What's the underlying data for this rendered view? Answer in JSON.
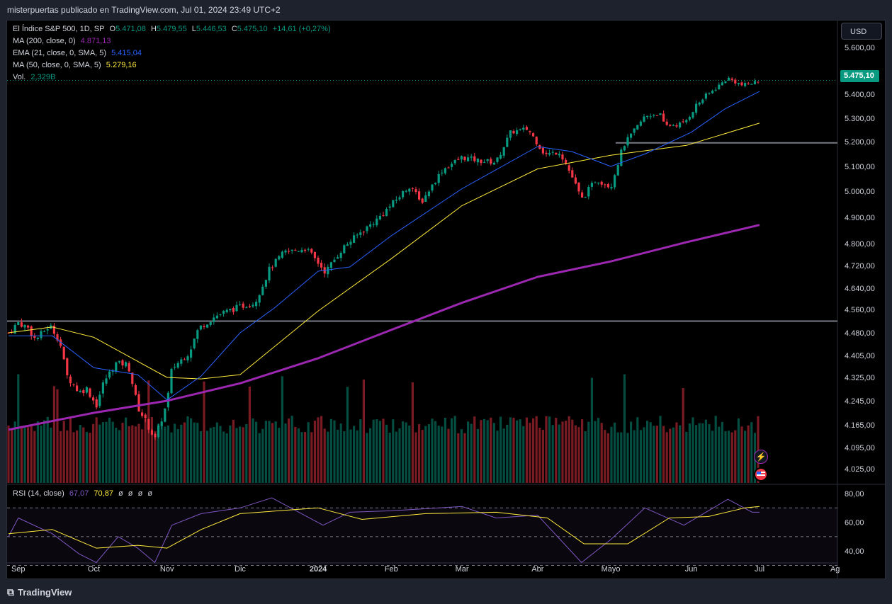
{
  "header": {
    "published_by": "misterpuertas publicado en TradingView.com, Jul 01, 2024 23:49 UTC+2"
  },
  "footer": {
    "brand": "TradingView"
  },
  "currency_button": "USD",
  "last_price_label": "5.475,10",
  "legend": {
    "symbol": "El Índice S&P 500, 1D, SP",
    "ohlc": {
      "o_label": "O",
      "o": "5.471,08",
      "h_label": "H",
      "h": "5.479,55",
      "l_label": "L",
      "l": "5.446,53",
      "c_label": "C",
      "c": "5.475,10",
      "change": "+14,61 (+0,27%)"
    },
    "ma200": {
      "label": "MA (200, close, 0)",
      "value": "4.871,13"
    },
    "ema21": {
      "label": "EMA (21, close, 0, SMA, 5)",
      "value": "5.415,04"
    },
    "ma50": {
      "label": "MA (50, close, 0, SMA, 5)",
      "value": "5.279,16"
    },
    "vol": {
      "label": "Vol.",
      "value": "2,329B"
    }
  },
  "rsi_legend": {
    "label": "RSI (14, close)",
    "rsi": "67,07",
    "ma": "70,87",
    "extras": [
      "ø",
      "ø",
      "ø",
      "ø"
    ]
  },
  "colors": {
    "up": "#089981",
    "down": "#f23645",
    "ma200": "#9c27b0",
    "ema21": "#2962ff",
    "ma50": "#ffeb3b",
    "rsi": "#7e57c2",
    "rsi_ma": "#ffeb3b",
    "bg": "#000000"
  },
  "chart_data": {
    "type": "candlestick",
    "title": "El Índice S&P 500, 1D, SP",
    "price_axis_ticks": [
      "5.600,00",
      "5.500,00",
      "5.400,00",
      "5.300,00",
      "5.200,00",
      "5.100,00",
      "5.000,00",
      "4.900,00",
      "4.800,00",
      "4.720,00",
      "4.640,00",
      "4.560,00",
      "4.480,00",
      "4.405,00",
      "4.325,00",
      "4.245,00",
      "4.165,00",
      "4.095,00",
      "4.025,00"
    ],
    "price_axis_values": [
      5600,
      5500,
      5400,
      5300,
      5200,
      5100,
      5000,
      4900,
      4800,
      4720,
      4640,
      4560,
      4480,
      4405,
      4325,
      4245,
      4165,
      4095,
      4025
    ],
    "rsi_axis_ticks": [
      "80,00",
      "60,00",
      "40,00"
    ],
    "rsi_axis_values": [
      80,
      60,
      40
    ],
    "time_axis_labels": [
      "Sep",
      "Oct",
      "Nov",
      "Dic",
      "2024",
      "Feb",
      "Mar",
      "Abr",
      "Mayo",
      "Jun",
      "Jul",
      "Ag"
    ],
    "close_path": [
      {
        "d": "2023-08-28",
        "c": 4480
      },
      {
        "d": "2023-09-01",
        "c": 4515
      },
      {
        "d": "2023-09-05",
        "c": 4497
      },
      {
        "d": "2023-09-08",
        "c": 4457
      },
      {
        "d": "2023-09-14",
        "c": 4505
      },
      {
        "d": "2023-09-18",
        "c": 4453
      },
      {
        "d": "2023-09-21",
        "c": 4330
      },
      {
        "d": "2023-09-26",
        "c": 4274
      },
      {
        "d": "2023-09-29",
        "c": 4288
      },
      {
        "d": "2023-10-03",
        "c": 4229
      },
      {
        "d": "2023-10-06",
        "c": 4308
      },
      {
        "d": "2023-10-11",
        "c": 4376
      },
      {
        "d": "2023-10-16",
        "c": 4373
      },
      {
        "d": "2023-10-20",
        "c": 4224
      },
      {
        "d": "2023-10-26",
        "c": 4137
      },
      {
        "d": "2023-10-27",
        "c": 4117
      },
      {
        "d": "2023-11-01",
        "c": 4237
      },
      {
        "d": "2023-11-03",
        "c": 4358
      },
      {
        "d": "2023-11-10",
        "c": 4415
      },
      {
        "d": "2023-11-14",
        "c": 4496
      },
      {
        "d": "2023-11-21",
        "c": 4538
      },
      {
        "d": "2023-11-30",
        "c": 4568
      },
      {
        "d": "2023-12-07",
        "c": 4585
      },
      {
        "d": "2023-12-13",
        "c": 4707
      },
      {
        "d": "2023-12-19",
        "c": 4768
      },
      {
        "d": "2023-12-28",
        "c": 4783
      },
      {
        "d": "2024-01-05",
        "c": 4697
      },
      {
        "d": "2024-01-12",
        "c": 4783
      },
      {
        "d": "2024-01-19",
        "c": 4840
      },
      {
        "d": "2024-01-26",
        "c": 4891
      },
      {
        "d": "2024-02-02",
        "c": 4958
      },
      {
        "d": "2024-02-09",
        "c": 5026
      },
      {
        "d": "2024-02-13",
        "c": 4953
      },
      {
        "d": "2024-02-22",
        "c": 5087
      },
      {
        "d": "2024-03-01",
        "c": 5137
      },
      {
        "d": "2024-03-08",
        "c": 5123
      },
      {
        "d": "2024-03-15",
        "c": 5117
      },
      {
        "d": "2024-03-21",
        "c": 5241
      },
      {
        "d": "2024-03-28",
        "c": 5254
      },
      {
        "d": "2024-04-04",
        "c": 5147
      },
      {
        "d": "2024-04-10",
        "c": 5160
      },
      {
        "d": "2024-04-15",
        "c": 5061
      },
      {
        "d": "2024-04-19",
        "c": 4967
      },
      {
        "d": "2024-04-25",
        "c": 5048
      },
      {
        "d": "2024-05-01",
        "c": 5018
      },
      {
        "d": "2024-05-06",
        "c": 5181
      },
      {
        "d": "2024-05-15",
        "c": 5308
      },
      {
        "d": "2024-05-21",
        "c": 5321
      },
      {
        "d": "2024-05-23",
        "c": 5267
      },
      {
        "d": "2024-05-31",
        "c": 5277
      },
      {
        "d": "2024-06-05",
        "c": 5354
      },
      {
        "d": "2024-06-12",
        "c": 5421
      },
      {
        "d": "2024-06-18",
        "c": 5487
      },
      {
        "d": "2024-06-24",
        "c": 5447
      },
      {
        "d": "2024-06-28",
        "c": 5460
      },
      {
        "d": "2024-07-01",
        "c": 5475
      }
    ],
    "ma200_path": [
      {
        "d": "2023-08-28",
        "v": 4150
      },
      {
        "d": "2023-10-02",
        "v": 4205
      },
      {
        "d": "2023-11-01",
        "v": 4245
      },
      {
        "d": "2023-12-01",
        "v": 4305
      },
      {
        "d": "2024-01-02",
        "v": 4395
      },
      {
        "d": "2024-02-01",
        "v": 4490
      },
      {
        "d": "2024-03-01",
        "v": 4585
      },
      {
        "d": "2024-04-01",
        "v": 4680
      },
      {
        "d": "2024-05-01",
        "v": 4735
      },
      {
        "d": "2024-06-01",
        "v": 4805
      },
      {
        "d": "2024-07-01",
        "v": 4871
      }
    ],
    "ema21_path": [
      {
        "d": "2023-08-28",
        "v": 4470
      },
      {
        "d": "2023-09-15",
        "v": 4470
      },
      {
        "d": "2023-10-02",
        "v": 4360
      },
      {
        "d": "2023-10-20",
        "v": 4335
      },
      {
        "d": "2023-11-01",
        "v": 4248
      },
      {
        "d": "2023-11-15",
        "v": 4330
      },
      {
        "d": "2023-12-01",
        "v": 4480
      },
      {
        "d": "2023-12-15",
        "v": 4565
      },
      {
        "d": "2024-01-02",
        "v": 4700
      },
      {
        "d": "2024-01-15",
        "v": 4715
      },
      {
        "d": "2024-02-01",
        "v": 4830
      },
      {
        "d": "2024-03-01",
        "v": 5010
      },
      {
        "d": "2024-04-01",
        "v": 5180
      },
      {
        "d": "2024-04-15",
        "v": 5160
      },
      {
        "d": "2024-05-01",
        "v": 5100
      },
      {
        "d": "2024-05-15",
        "v": 5150
      },
      {
        "d": "2024-06-03",
        "v": 5240
      },
      {
        "d": "2024-06-17",
        "v": 5340
      },
      {
        "d": "2024-07-01",
        "v": 5415
      }
    ],
    "ma50_path": [
      {
        "d": "2023-08-28",
        "v": 4480
      },
      {
        "d": "2023-09-15",
        "v": 4500
      },
      {
        "d": "2023-10-02",
        "v": 4465
      },
      {
        "d": "2023-11-01",
        "v": 4325
      },
      {
        "d": "2023-11-15",
        "v": 4320
      },
      {
        "d": "2023-12-01",
        "v": 4335
      },
      {
        "d": "2024-01-02",
        "v": 4555
      },
      {
        "d": "2024-02-01",
        "v": 4745
      },
      {
        "d": "2024-03-01",
        "v": 4945
      },
      {
        "d": "2024-04-01",
        "v": 5090
      },
      {
        "d": "2024-05-01",
        "v": 5145
      },
      {
        "d": "2024-06-01",
        "v": 5185
      },
      {
        "d": "2024-07-01",
        "v": 5279
      }
    ],
    "horizontal_levels": [
      4520,
      5195
    ],
    "rsi_path": [
      {
        "d": "2023-08-28",
        "v": 50
      },
      {
        "d": "2023-09-01",
        "v": 63
      },
      {
        "d": "2023-09-15",
        "v": 52
      },
      {
        "d": "2023-09-26",
        "v": 38
      },
      {
        "d": "2023-10-03",
        "v": 32
      },
      {
        "d": "2023-10-12",
        "v": 50
      },
      {
        "d": "2023-10-20",
        "v": 42
      },
      {
        "d": "2023-10-27",
        "v": 32
      },
      {
        "d": "2023-11-03",
        "v": 58
      },
      {
        "d": "2023-11-15",
        "v": 66
      },
      {
        "d": "2023-12-01",
        "v": 70
      },
      {
        "d": "2023-12-14",
        "v": 77
      },
      {
        "d": "2024-01-04",
        "v": 58
      },
      {
        "d": "2024-01-15",
        "v": 67
      },
      {
        "d": "2024-02-01",
        "v": 68
      },
      {
        "d": "2024-03-01",
        "v": 71
      },
      {
        "d": "2024-03-15",
        "v": 63
      },
      {
        "d": "2024-04-01",
        "v": 65
      },
      {
        "d": "2024-04-19",
        "v": 32
      },
      {
        "d": "2024-05-01",
        "v": 48
      },
      {
        "d": "2024-05-15",
        "v": 70
      },
      {
        "d": "2024-05-31",
        "v": 58
      },
      {
        "d": "2024-06-18",
        "v": 76
      },
      {
        "d": "2024-06-28",
        "v": 67
      },
      {
        "d": "2024-07-01",
        "v": 67
      }
    ],
    "rsi_ma_path": [
      {
        "d": "2023-08-28",
        "v": 52
      },
      {
        "d": "2023-09-15",
        "v": 55
      },
      {
        "d": "2023-10-03",
        "v": 42
      },
      {
        "d": "2023-10-20",
        "v": 44
      },
      {
        "d": "2023-11-01",
        "v": 42
      },
      {
        "d": "2023-11-15",
        "v": 55
      },
      {
        "d": "2023-12-01",
        "v": 66
      },
      {
        "d": "2024-01-02",
        "v": 70
      },
      {
        "d": "2024-01-20",
        "v": 62
      },
      {
        "d": "2024-02-15",
        "v": 66
      },
      {
        "d": "2024-03-15",
        "v": 67
      },
      {
        "d": "2024-04-05",
        "v": 63
      },
      {
        "d": "2024-04-20",
        "v": 45
      },
      {
        "d": "2024-05-08",
        "v": 45
      },
      {
        "d": "2024-05-25",
        "v": 63
      },
      {
        "d": "2024-06-10",
        "v": 64
      },
      {
        "d": "2024-06-25",
        "v": 70
      },
      {
        "d": "2024-07-01",
        "v": 71
      }
    ],
    "volume_note": "Vol. 2,329B"
  }
}
